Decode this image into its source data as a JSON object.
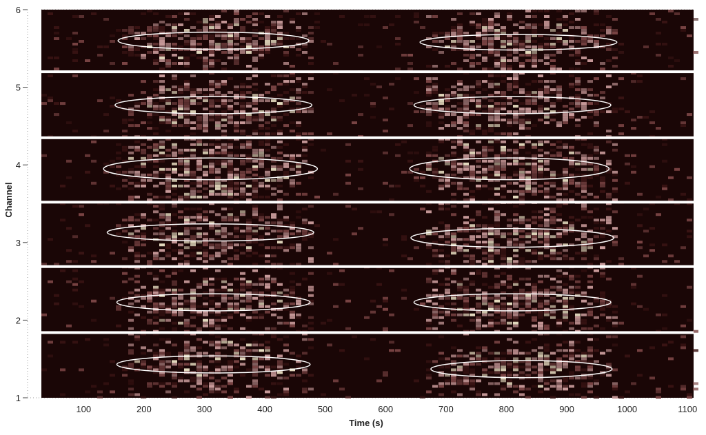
{
  "chart_data": {
    "type": "heatmap",
    "title": "",
    "xlabel": "Time (s)",
    "ylabel": "Channel",
    "xlim": [
      30,
      1110
    ],
    "ylim": [
      1,
      6
    ],
    "xticks": [
      100,
      200,
      300,
      400,
      500,
      600,
      700,
      800,
      900,
      1000,
      1100
    ],
    "yticks": [
      1,
      2,
      3,
      4,
      5,
      6
    ],
    "grid": "dotted",
    "colormap": [
      "#1a0505",
      "#3a1414",
      "#7a4444",
      "#c89a9a",
      "#e6dcc0"
    ],
    "background_color": "#1a0606",
    "separator_color": "#ffffff",
    "ellipse_color": "#ffffff",
    "bands": [
      {
        "channel": 1,
        "y_from": 1.0,
        "y_to": 1.84
      },
      {
        "channel": 2,
        "y_from": 1.84,
        "y_to": 2.69
      },
      {
        "channel": 3,
        "y_from": 2.69,
        "y_to": 3.52
      },
      {
        "channel": 4,
        "y_from": 3.52,
        "y_to": 4.35
      },
      {
        "channel": 5,
        "y_from": 4.35,
        "y_to": 5.2
      },
      {
        "channel": 6,
        "y_from": 5.2,
        "y_to": 6.0
      }
    ],
    "active_windows": [
      {
        "t_start": 170,
        "t_end": 485
      },
      {
        "t_start": 670,
        "t_end": 985
      }
    ],
    "highlights": [
      {
        "channel": 6,
        "t_center": 315,
        "t_half_width": 158,
        "y_center": 5.6,
        "y_half_height": 0.11
      },
      {
        "channel": 6,
        "t_center": 820,
        "t_half_width": 163,
        "y_center": 5.58,
        "y_half_height": 0.1
      },
      {
        "channel": 5,
        "t_center": 315,
        "t_half_width": 163,
        "y_center": 4.77,
        "y_half_height": 0.11
      },
      {
        "channel": 5,
        "t_center": 810,
        "t_half_width": 163,
        "y_center": 4.77,
        "y_half_height": 0.11
      },
      {
        "channel": 4,
        "t_center": 310,
        "t_half_width": 177,
        "y_center": 3.95,
        "y_half_height": 0.14
      },
      {
        "channel": 4,
        "t_center": 805,
        "t_half_width": 165,
        "y_center": 3.95,
        "y_half_height": 0.14
      },
      {
        "channel": 3,
        "t_center": 310,
        "t_half_width": 171,
        "y_center": 3.13,
        "y_half_height": 0.11
      },
      {
        "channel": 3,
        "t_center": 810,
        "t_half_width": 168,
        "y_center": 3.06,
        "y_half_height": 0.12
      },
      {
        "channel": 2,
        "t_center": 315,
        "t_half_width": 160,
        "y_center": 2.23,
        "y_half_height": 0.11
      },
      {
        "channel": 2,
        "t_center": 810,
        "t_half_width": 163,
        "y_center": 2.23,
        "y_half_height": 0.11
      },
      {
        "channel": 1,
        "t_center": 315,
        "t_half_width": 160,
        "y_center": 1.43,
        "y_half_height": 0.11
      },
      {
        "channel": 1,
        "t_center": 825,
        "t_half_width": 150,
        "y_center": 1.37,
        "y_half_height": 0.11
      }
    ]
  }
}
